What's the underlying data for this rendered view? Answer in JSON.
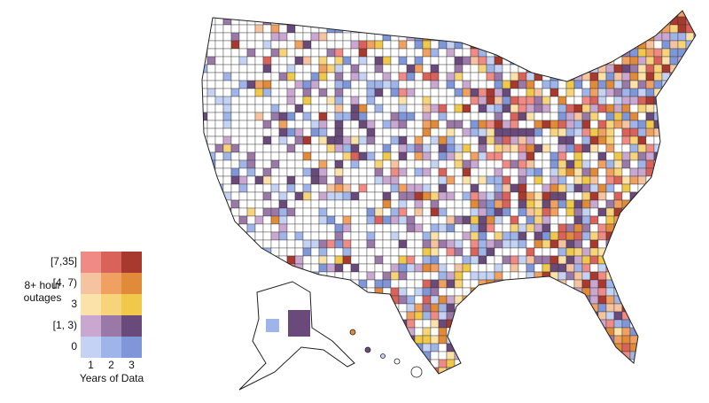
{
  "legend": {
    "y_title": "8+ hour outages",
    "rows": [
      "[7,35]",
      "[4, 7)",
      "3",
      "[1, 3)",
      "0"
    ],
    "columns": [
      "1",
      "2",
      "3"
    ],
    "x_title": "Years of Data",
    "colors": [
      [
        "#f08a84",
        "#d9635a",
        "#a8392e"
      ],
      [
        "#f6c3a0",
        "#f0a060",
        "#e08a3a"
      ],
      [
        "#fbe2a8",
        "#f7d47a",
        "#f0c84a"
      ],
      [
        "#c9a7d0",
        "#9a78a8",
        "#6a4a7a"
      ],
      [
        "#c4d2f4",
        "#9fb4e8",
        "#7f97d8"
      ]
    ]
  }
}
